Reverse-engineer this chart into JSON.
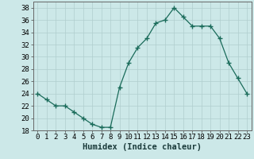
{
  "x": [
    0,
    1,
    2,
    3,
    4,
    5,
    6,
    7,
    8,
    9,
    10,
    11,
    12,
    13,
    14,
    15,
    16,
    17,
    18,
    19,
    20,
    21,
    22,
    23
  ],
  "y": [
    24,
    23,
    22,
    22,
    21,
    20,
    19,
    18.5,
    18.5,
    25,
    29,
    31.5,
    33,
    35.5,
    36,
    38,
    36.5,
    35,
    35,
    35,
    33,
    29,
    26.5,
    24
  ],
  "line_color": "#1a6b5a",
  "marker": "+",
  "marker_size": 4,
  "bg_color": "#cce8e8",
  "grid_color": "#b0cece",
  "xlabel": "Humidex (Indice chaleur)",
  "ylim": [
    18,
    39
  ],
  "xlim": [
    -0.5,
    23.5
  ],
  "yticks": [
    18,
    20,
    22,
    24,
    26,
    28,
    30,
    32,
    34,
    36,
    38
  ],
  "xticks": [
    0,
    1,
    2,
    3,
    4,
    5,
    6,
    7,
    8,
    9,
    10,
    11,
    12,
    13,
    14,
    15,
    16,
    17,
    18,
    19,
    20,
    21,
    22,
    23
  ],
  "tick_fontsize": 6.5,
  "label_fontsize": 7.5
}
